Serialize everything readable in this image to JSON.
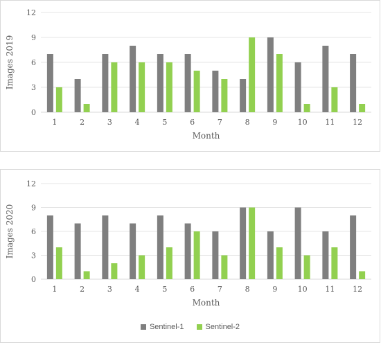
{
  "chart_data": [
    {
      "type": "bar",
      "ylabel": "Images 2019",
      "xlabel": "Month",
      "categories": [
        "1",
        "2",
        "3",
        "4",
        "5",
        "6",
        "7",
        "8",
        "9",
        "10",
        "11",
        "12"
      ],
      "ylim": [
        0,
        12
      ],
      "yticks": [
        0,
        3,
        6,
        9,
        12
      ],
      "grid": true,
      "series": [
        {
          "name": "Sentinel-1",
          "color": "#7f7f7f",
          "values": [
            7,
            4,
            7,
            8,
            7,
            7,
            5,
            4,
            9,
            6,
            8,
            7
          ]
        },
        {
          "name": "Sentinel-2",
          "color": "#92d050",
          "values": [
            3,
            1,
            6,
            6,
            6,
            5,
            4,
            9,
            7,
            1,
            3,
            1
          ]
        }
      ]
    },
    {
      "type": "bar",
      "ylabel": "Images 2020",
      "xlabel": "Month",
      "categories": [
        "1",
        "2",
        "3",
        "4",
        "5",
        "6",
        "7",
        "8",
        "9",
        "10",
        "11",
        "12"
      ],
      "ylim": [
        0,
        12
      ],
      "yticks": [
        0,
        3,
        6,
        9,
        12
      ],
      "grid": true,
      "series": [
        {
          "name": "Sentinel-1",
          "color": "#7f7f7f",
          "values": [
            8,
            7,
            8,
            7,
            8,
            7,
            6,
            9,
            6,
            9,
            6,
            8
          ]
        },
        {
          "name": "Sentinel-2",
          "color": "#92d050",
          "values": [
            4,
            1,
            2,
            3,
            4,
            6,
            3,
            9,
            4,
            3,
            4,
            1
          ]
        }
      ]
    }
  ],
  "legend": {
    "placement": "bottom",
    "items": [
      {
        "label": "Sentinel-1",
        "color": "#7f7f7f"
      },
      {
        "label": "Sentinel-2",
        "color": "#92d050"
      }
    ]
  }
}
